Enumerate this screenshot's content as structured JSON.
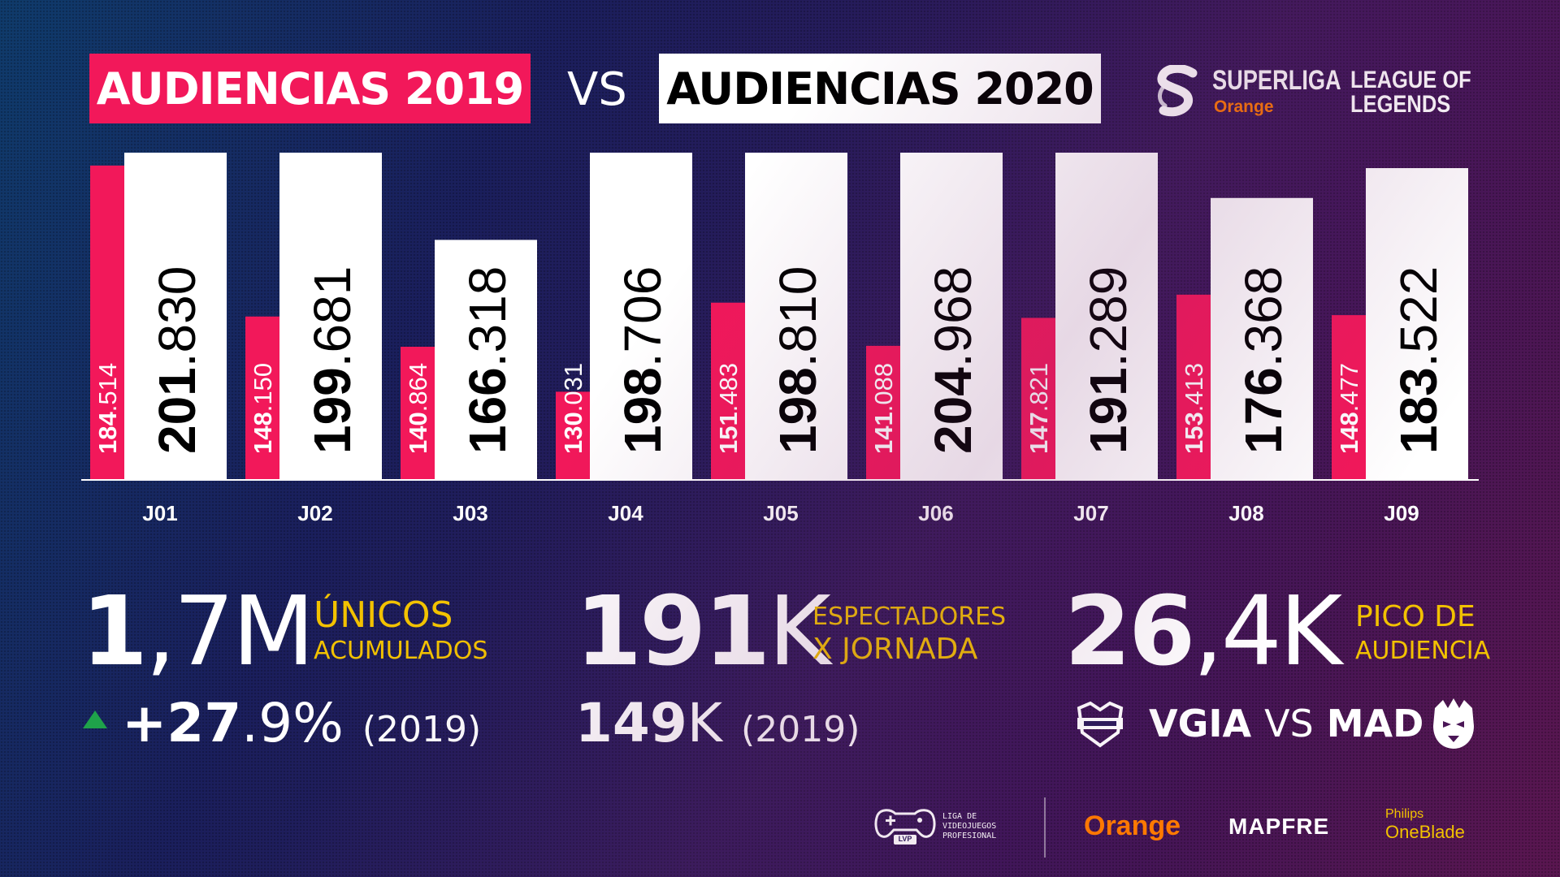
{
  "header": {
    "title_2019": "AUDIENCIAS 2019",
    "vs": "VS",
    "title_2020": "AUDIENCIAS 2020",
    "superliga_word": "SUPERLIGA",
    "superliga_sub": "Orange",
    "lol_line1": "LEAGUE OF",
    "lol_line2": "LEGENDS"
  },
  "colors": {
    "series_2019": "#f2185a",
    "series_2020": "#ffffff",
    "accent_label": "#f2c200",
    "orange_brand": "#ff7a00",
    "up_arrow": "#1fa24a"
  },
  "chart_data": {
    "type": "bar",
    "categories": [
      "J01",
      "J02",
      "J03",
      "J04",
      "J05",
      "J06",
      "J07",
      "J08",
      "J09"
    ],
    "series": [
      {
        "name": "AUDIENCIAS 2019",
        "values": [
          184514,
          148150,
          140864,
          130031,
          151483,
          141088,
          147821,
          153413,
          148477
        ],
        "labels": [
          [
            "184",
            ".514"
          ],
          [
            "148",
            ".150"
          ],
          [
            "140",
            ".864"
          ],
          [
            "130",
            ".031"
          ],
          [
            "151",
            ".483"
          ],
          [
            "141",
            ".088"
          ],
          [
            "147",
            ".821"
          ],
          [
            "153",
            ".413"
          ],
          [
            "148",
            ".477"
          ]
        ]
      },
      {
        "name": "AUDIENCIAS 2020",
        "values": [
          201830,
          199681,
          166318,
          198706,
          198810,
          204968,
          191289,
          176368,
          183522
        ],
        "labels": [
          [
            "201",
            ".830"
          ],
          [
            "199",
            ".681"
          ],
          [
            "166",
            ".318"
          ],
          [
            "198",
            ".706"
          ],
          [
            "198",
            ".810"
          ],
          [
            "204",
            ".968"
          ],
          [
            "191",
            ".289"
          ],
          [
            "176",
            ".368"
          ],
          [
            "183",
            ".522"
          ]
        ]
      }
    ],
    "ylim": [
      0,
      210000
    ],
    "grid": false,
    "legend": "top"
  },
  "stats": {
    "unicos": {
      "big_bold": "1",
      "big_rest": ",7M",
      "label_line1": "ÚNICOS",
      "label_line2": "ACUMULADOS",
      "sub_value_bold": "+27",
      "sub_value_rest": ".9%",
      "sub_year": "(2019)"
    },
    "espectadores": {
      "big_bold": "191",
      "big_rest": "K",
      "label_line1": "ESPECTADORES",
      "label_line2": "X JORNADA",
      "sub_value_bold": "149",
      "sub_value_rest": "K",
      "sub_year": "(2019)"
    },
    "pico": {
      "big_bold": "26",
      "big_rest": ",4K",
      "label_line1": "PICO DE",
      "label_line2": "AUDIENCIA",
      "team_a": "VGIA",
      "vs": "VS",
      "team_b": "MAD"
    }
  },
  "icons": {
    "up": "triangle-up-icon",
    "giants": "giants-logo-icon",
    "mad": "mad-lions-logo-icon"
  },
  "footer": {
    "lvp_line1": "LIGA DE",
    "lvp_line2": "VIDEOJUEGOS",
    "lvp_line3": "PROFESIONAL",
    "lvp_badge": "LVP",
    "orange": "Orange",
    "mapfre": "MAPFRE",
    "philips": "Philips",
    "oneblade": "OneBlade"
  }
}
